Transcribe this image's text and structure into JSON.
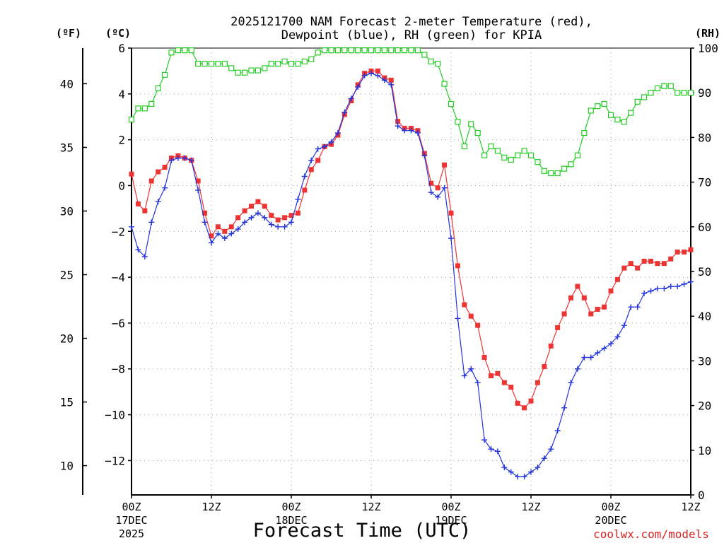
{
  "chart_data": {
    "type": "line",
    "title_line1": "2025121700 NAM Forecast 2-meter Temperature (red),",
    "title_line2": "Dewpoint (blue), RH (green) for KPIA",
    "xlabel": "Forecast Time (UTC)",
    "credit": "coolwx.com/models",
    "unit_f": "(ºF)",
    "unit_c": "(ºC)",
    "unit_rh": "(RH)",
    "x_range_hours": [
      0,
      84
    ],
    "ylim_c": [
      -13.5,
      6
    ],
    "ylim_rh": [
      0,
      100
    ],
    "grid": true,
    "x_ticks": [
      {
        "hour": 0,
        "label": "00Z",
        "sub1": "17DEC",
        "sub2": "2025"
      },
      {
        "hour": 12,
        "label": "12Z",
        "sub1": "",
        "sub2": ""
      },
      {
        "hour": 24,
        "label": "00Z",
        "sub1": "18DEC",
        "sub2": ""
      },
      {
        "hour": 36,
        "label": "12Z",
        "sub1": "",
        "sub2": ""
      },
      {
        "hour": 48,
        "label": "00Z",
        "sub1": "19DEC",
        "sub2": ""
      },
      {
        "hour": 60,
        "label": "12Z",
        "sub1": "",
        "sub2": ""
      },
      {
        "hour": 72,
        "label": "00Z",
        "sub1": "20DEC",
        "sub2": ""
      },
      {
        "hour": 84,
        "label": "12Z",
        "sub1": "",
        "sub2": ""
      }
    ],
    "c_ticks": [
      {
        "value": 6,
        "label": "6"
      },
      {
        "value": 4,
        "label": "4"
      },
      {
        "value": 2,
        "label": "2"
      },
      {
        "value": 0,
        "label": "0"
      },
      {
        "value": -2,
        "label": "−2"
      },
      {
        "value": -4,
        "label": "−4"
      },
      {
        "value": -6,
        "label": "−6"
      },
      {
        "value": -8,
        "label": "−8"
      },
      {
        "value": -10,
        "label": "−10"
      },
      {
        "value": -12,
        "label": "−12"
      }
    ],
    "f_ticks": [
      {
        "value": 40,
        "label": "40"
      },
      {
        "value": 35,
        "label": "35"
      },
      {
        "value": 30,
        "label": "30"
      },
      {
        "value": 25,
        "label": "25"
      },
      {
        "value": 20,
        "label": "20"
      },
      {
        "value": 15,
        "label": "15"
      },
      {
        "value": 10,
        "label": "10"
      }
    ],
    "rh_ticks": [
      {
        "value": 100,
        "label": "100"
      },
      {
        "value": 90,
        "label": "90"
      },
      {
        "value": 80,
        "label": "80"
      },
      {
        "value": 70,
        "label": "70"
      },
      {
        "value": 60,
        "label": "60"
      },
      {
        "value": 50,
        "label": "50"
      },
      {
        "value": 40,
        "label": "40"
      },
      {
        "value": 30,
        "label": "30"
      },
      {
        "value": 20,
        "label": "20"
      },
      {
        "value": 10,
        "label": "10"
      },
      {
        "value": 0,
        "label": "0"
      }
    ],
    "series": [
      {
        "name": "Temperature (°C)",
        "axis": "c",
        "color": "#ee3333",
        "marker": "square-filled",
        "x": [
          0,
          1,
          2,
          3,
          4,
          5,
          6,
          7,
          8,
          9,
          10,
          11,
          12,
          13,
          14,
          15,
          16,
          17,
          18,
          19,
          20,
          21,
          22,
          23,
          24,
          25,
          26,
          27,
          28,
          29,
          30,
          31,
          32,
          33,
          34,
          35,
          36,
          37,
          38,
          39,
          40,
          41,
          42,
          43,
          44,
          45,
          46,
          47,
          48,
          49,
          50,
          51,
          52,
          53,
          54,
          55,
          56,
          57,
          58,
          59,
          60,
          61,
          62,
          63,
          64,
          65,
          66,
          67,
          68,
          69,
          70,
          71,
          72,
          73,
          74,
          75,
          76,
          77,
          78,
          79,
          80,
          81,
          82,
          83,
          84
        ],
        "values": [
          0.5,
          -0.8,
          -1.1,
          0.2,
          0.6,
          0.8,
          1.2,
          1.3,
          1.2,
          1.1,
          0.2,
          -1.2,
          -2.2,
          -1.8,
          -2.0,
          -1.8,
          -1.4,
          -1.1,
          -0.9,
          -0.7,
          -0.9,
          -1.3,
          -1.5,
          -1.4,
          -1.3,
          -1.2,
          -0.2,
          0.7,
          1.1,
          1.7,
          1.8,
          2.2,
          3.1,
          3.7,
          4.4,
          4.9,
          5.0,
          5.0,
          4.7,
          4.6,
          2.8,
          2.5,
          2.5,
          2.4,
          1.4,
          0.1,
          -0.1,
          0.9,
          -1.2,
          -3.5,
          -5.2,
          -5.7,
          -6.1,
          -7.5,
          -8.3,
          -8.2,
          -8.6,
          -8.8,
          -9.5,
          -9.7,
          -9.4,
          -8.6,
          -7.9,
          -7.0,
          -6.2,
          -5.6,
          -4.9,
          -4.4,
          -4.9,
          -5.6,
          -5.4,
          -5.3,
          -4.6,
          -4.1,
          -3.6,
          -3.4,
          -3.6,
          -3.3,
          -3.3,
          -3.4,
          -3.4,
          -3.2,
          -2.9,
          -2.9,
          -2.8
        ]
      },
      {
        "name": "Dewpoint (°C)",
        "axis": "c",
        "color": "#2233dd",
        "marker": "plus",
        "x": [
          0,
          1,
          2,
          3,
          4,
          5,
          6,
          7,
          8,
          9,
          10,
          11,
          12,
          13,
          14,
          15,
          16,
          17,
          18,
          19,
          20,
          21,
          22,
          23,
          24,
          25,
          26,
          27,
          28,
          29,
          30,
          31,
          32,
          33,
          34,
          35,
          36,
          37,
          38,
          39,
          40,
          41,
          42,
          43,
          44,
          45,
          46,
          47,
          48,
          49,
          50,
          51,
          52,
          53,
          54,
          55,
          56,
          57,
          58,
          59,
          60,
          61,
          62,
          63,
          64,
          65,
          66,
          67,
          68,
          69,
          70,
          71,
          72,
          73,
          74,
          75,
          76,
          77,
          78,
          79,
          80,
          81,
          82,
          83,
          84
        ],
        "values": [
          -1.8,
          -2.8,
          -3.1,
          -1.6,
          -0.7,
          -0.1,
          1.1,
          1.2,
          1.2,
          1.1,
          -0.2,
          -1.6,
          -2.5,
          -2.1,
          -2.3,
          -2.1,
          -1.9,
          -1.6,
          -1.4,
          -1.2,
          -1.4,
          -1.7,
          -1.8,
          -1.8,
          -1.6,
          -0.6,
          0.4,
          1.1,
          1.6,
          1.7,
          1.9,
          2.3,
          3.2,
          3.8,
          4.3,
          4.8,
          4.9,
          4.8,
          4.6,
          4.4,
          2.6,
          2.4,
          2.4,
          2.3,
          1.3,
          -0.3,
          -0.5,
          -0.1,
          -2.3,
          -5.8,
          -8.3,
          -8.0,
          -8.6,
          -11.1,
          -11.5,
          -11.6,
          -12.3,
          -12.5,
          -12.7,
          -12.7,
          -12.5,
          -12.3,
          -11.9,
          -11.5,
          -10.7,
          -9.7,
          -8.6,
          -8.0,
          -7.5,
          -7.5,
          -7.3,
          -7.1,
          -6.9,
          -6.6,
          -6.1,
          -5.3,
          -5.3,
          -4.7,
          -4.6,
          -4.5,
          -4.5,
          -4.4,
          -4.4,
          -4.3,
          -4.2
        ]
      },
      {
        "name": "RH (%)",
        "axis": "rh",
        "color": "#22cc22",
        "marker": "square-open",
        "x": [
          0,
          1,
          2,
          3,
          4,
          5,
          6,
          7,
          8,
          9,
          10,
          11,
          12,
          13,
          14,
          15,
          16,
          17,
          18,
          19,
          20,
          21,
          22,
          23,
          24,
          25,
          26,
          27,
          28,
          29,
          30,
          31,
          32,
          33,
          34,
          35,
          36,
          37,
          38,
          39,
          40,
          41,
          42,
          43,
          44,
          45,
          46,
          47,
          48,
          49,
          50,
          51,
          52,
          53,
          54,
          55,
          56,
          57,
          58,
          59,
          60,
          61,
          62,
          63,
          64,
          65,
          66,
          67,
          68,
          69,
          70,
          71,
          72,
          73,
          74,
          75,
          76,
          77,
          78,
          79,
          80,
          81,
          82,
          83,
          84
        ],
        "values": [
          84,
          86.5,
          86.5,
          87.5,
          91,
          94,
          99,
          99.5,
          99.5,
          99.5,
          96.5,
          96.5,
          96.5,
          96.5,
          96.5,
          95.5,
          94.5,
          94.5,
          95,
          95,
          95.5,
          96.5,
          96.5,
          97,
          96.5,
          96.5,
          97,
          97.5,
          99,
          99.5,
          99.5,
          99.5,
          99.5,
          99.5,
          99.5,
          99.5,
          99.5,
          99.5,
          99.5,
          99.5,
          99.5,
          99.5,
          99.5,
          99.5,
          98.5,
          97,
          96.5,
          92,
          87.5,
          83.5,
          78,
          83,
          81,
          76,
          78,
          77,
          75.5,
          75,
          76,
          77,
          76,
          74.5,
          72.5,
          72,
          72,
          73,
          74,
          76,
          81,
          86,
          87,
          87.5,
          85,
          84,
          83.5,
          85.5,
          88,
          89,
          90,
          91,
          91.5,
          91.5,
          90,
          90,
          90
        ]
      }
    ]
  }
}
